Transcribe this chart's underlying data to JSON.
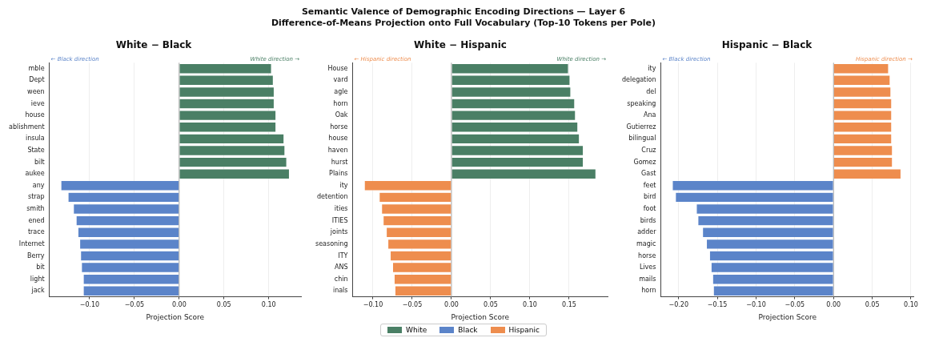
{
  "chart_data": [
    {
      "type": "other",
      "title": "Semantic Valence of Demographic Encoding Directions — Layer 6",
      "subtitle": "Difference-of-Means Projection onto Full Vocabulary (Top-10 Tokens per Pole)"
    },
    {
      "type": "bar",
      "orientation": "horizontal",
      "title": "White − Black",
      "xlabel": "Projection Score",
      "categories": [
        "mble",
        "Dept",
        "ween",
        "ieve",
        "house",
        "ablishment",
        "insula",
        "State",
        "bilt",
        "aukee",
        "any",
        "strap",
        "smith",
        "ened",
        "trace",
        "Internet",
        "Berry",
        "bit",
        "light",
        "jack"
      ],
      "series": [
        {
          "name": "White",
          "color": "#4a7f65",
          "values": [
            0.103,
            0.105,
            0.106,
            0.106,
            0.108,
            0.108,
            0.117,
            0.118,
            0.12,
            0.123,
            null,
            null,
            null,
            null,
            null,
            null,
            null,
            null,
            null,
            null
          ]
        },
        {
          "name": "Black",
          "color": "#5b84c9",
          "values": [
            null,
            null,
            null,
            null,
            null,
            null,
            null,
            null,
            null,
            null,
            -0.132,
            -0.124,
            -0.118,
            -0.115,
            -0.113,
            -0.111,
            -0.11,
            -0.109,
            -0.107,
            -0.107
          ]
        }
      ],
      "xlim": [
        -0.145,
        0.136
      ],
      "xticks": [
        {
          "value": -0.1,
          "label": "−0.10"
        },
        {
          "value": -0.05,
          "label": "−0.05"
        },
        {
          "value": 0,
          "label": "0.00"
        },
        {
          "value": 0.05,
          "label": "0.05"
        },
        {
          "value": 0.1,
          "label": "0.10"
        }
      ],
      "annotations": [
        "← Black direction",
        "White direction →"
      ],
      "ref_lines": [
        {
          "axis": "x",
          "value": 0,
          "color": "#aaaaaa"
        }
      ],
      "grid": "x",
      "legend": "bottom"
    },
    {
      "type": "bar",
      "orientation": "horizontal",
      "title": "White − Hispanic",
      "xlabel": "Projection Score",
      "categories": [
        "House",
        "vard",
        "agle",
        "horn",
        "Oak",
        "horse",
        "house",
        "haven",
        "hurst",
        "Plains",
        "ity",
        "detention",
        "ities",
        "ITIES",
        "joints",
        "seasoning",
        "ITY",
        "ANS",
        "chin",
        "inals"
      ],
      "series": [
        {
          "name": "White",
          "color": "#4a7f65",
          "values": [
            0.149,
            0.151,
            0.152,
            0.157,
            0.158,
            0.161,
            0.163,
            0.168,
            0.168,
            0.184,
            null,
            null,
            null,
            null,
            null,
            null,
            null,
            null,
            null,
            null
          ]
        },
        {
          "name": "Hispanic",
          "color": "#ee8d4e",
          "values": [
            null,
            null,
            null,
            null,
            null,
            null,
            null,
            null,
            null,
            null,
            -0.111,
            -0.092,
            -0.089,
            -0.087,
            -0.083,
            -0.081,
            -0.078,
            -0.075,
            -0.073,
            -0.072
          ]
        }
      ],
      "xlim": [
        -0.126,
        0.199
      ],
      "xticks": [
        {
          "value": -0.1,
          "label": "−0.10"
        },
        {
          "value": -0.05,
          "label": "−0.05"
        },
        {
          "value": 0,
          "label": "0.00"
        },
        {
          "value": 0.05,
          "label": "0.05"
        },
        {
          "value": 0.1,
          "label": "0.10"
        },
        {
          "value": 0.15,
          "label": "0.15"
        }
      ],
      "annotations": [
        "← Hispanic direction",
        "White direction →"
      ],
      "ref_lines": [
        {
          "axis": "x",
          "value": 0,
          "color": "#aaaaaa"
        }
      ],
      "grid": "x",
      "legend": "bottom"
    },
    {
      "type": "bar",
      "orientation": "horizontal",
      "title": "Hispanic − Black",
      "xlabel": "Projection Score",
      "categories": [
        "ity",
        "delegation",
        "del",
        "speaking",
        "Ana",
        "Gutierrez",
        "bilingual",
        "Cruz",
        "Gomez",
        "Gast",
        "feet",
        "bird",
        "foot",
        "birds",
        "adder",
        "magic",
        "horse",
        "Lives",
        "mails",
        "horn"
      ],
      "series": [
        {
          "name": "Hispanic",
          "color": "#ee8d4e",
          "values": [
            0.071,
            0.073,
            0.074,
            0.075,
            0.075,
            0.075,
            0.075,
            0.076,
            0.076,
            0.087,
            null,
            null,
            null,
            null,
            null,
            null,
            null,
            null,
            null,
            null
          ]
        },
        {
          "name": "Black",
          "color": "#5b84c9",
          "values": [
            null,
            null,
            null,
            null,
            null,
            null,
            null,
            null,
            null,
            null,
            -0.208,
            -0.204,
            -0.177,
            -0.175,
            -0.169,
            -0.164,
            -0.16,
            -0.158,
            -0.156,
            -0.155
          ]
        }
      ],
      "xlim": [
        -0.223,
        0.104
      ],
      "xticks": [
        {
          "value": -0.2,
          "label": "−0.20"
        },
        {
          "value": -0.15,
          "label": "−0.15"
        },
        {
          "value": -0.1,
          "label": "−0.10"
        },
        {
          "value": -0.05,
          "label": "−0.05"
        },
        {
          "value": 0,
          "label": "0.00"
        },
        {
          "value": 0.05,
          "label": "0.05"
        },
        {
          "value": 0.1,
          "label": "0.10"
        }
      ],
      "annotations": [
        "← Black direction",
        "Hispanic direction →"
      ],
      "ref_lines": [
        {
          "axis": "x",
          "value": 0,
          "color": "#aaaaaa"
        }
      ],
      "grid": "x",
      "legend": "bottom"
    }
  ]
}
